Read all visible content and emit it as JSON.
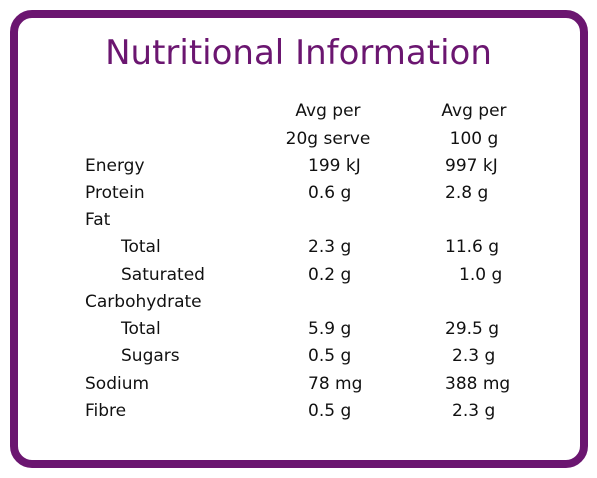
{
  "title": "Nutritional Information",
  "header": {
    "col1_line1": "Avg per",
    "col1_line2": "20g serve",
    "col2_line1": "Avg per",
    "col2_line2": "100 g"
  },
  "rows": [
    {
      "label": "Energy",
      "serve": "199 kJ",
      "per100": "997 kJ"
    },
    {
      "label": "Protein",
      "serve": "0.6 g",
      "per100": "2.8 g"
    },
    {
      "label": "Fat",
      "serve": "",
      "per100": ""
    },
    {
      "label": "Total",
      "serve": "2.3 g",
      "per100": "11.6 g"
    },
    {
      "label": "Saturated",
      "serve": "0.2 g",
      "per100": "1.0 g"
    },
    {
      "label": "Carbohydrate",
      "serve": "",
      "per100": ""
    },
    {
      "label": "Total",
      "serve": "5.9 g",
      "per100": "29.5 g"
    },
    {
      "label": "Sugars",
      "serve": "0.5 g",
      "per100": "2.3 g"
    },
    {
      "label": "Sodium",
      "serve": "78 mg",
      "per100": "388 mg"
    },
    {
      "label": "Fibre",
      "serve": "0.5 g",
      "per100": "2.3 g"
    }
  ],
  "colors": {
    "border": "#6b1670",
    "title": "#6b1670",
    "text": "#111111"
  }
}
